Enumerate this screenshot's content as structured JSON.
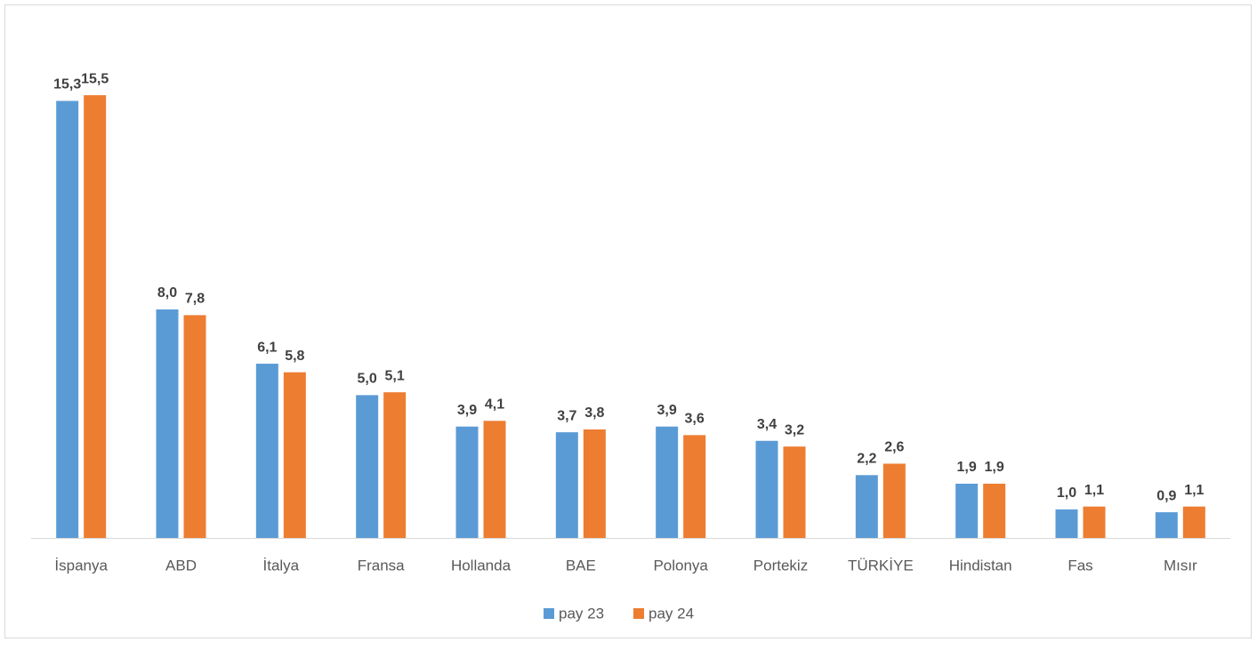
{
  "chart_data": {
    "type": "bar",
    "categories": [
      "İspanya",
      "ABD",
      "İtalya",
      "Fransa",
      "Hollanda",
      "BAE",
      "Polonya",
      "Portekiz",
      "TÜRKİYE",
      "Hindistan",
      "Fas",
      "Mısır"
    ],
    "series": [
      {
        "name": "pay 23",
        "color": "#5b9bd5",
        "values": [
          15.3,
          8.0,
          6.1,
          5.0,
          3.9,
          3.7,
          3.9,
          3.4,
          2.2,
          1.9,
          1.0,
          0.9
        ],
        "value_labels": [
          "15,3",
          "8,0",
          "6,1",
          "5,0",
          "3,9",
          "3,7",
          "3,9",
          "3,4",
          "2,2",
          "1,9",
          "1,0",
          "0,9"
        ]
      },
      {
        "name": "pay 24",
        "color": "#ed7d31",
        "values": [
          15.5,
          7.8,
          5.8,
          5.1,
          4.1,
          3.8,
          3.6,
          3.2,
          2.6,
          1.9,
          1.1,
          1.1
        ],
        "value_labels": [
          "15,5",
          "7,8",
          "5,8",
          "5,1",
          "4,1",
          "3,8",
          "3,6",
          "3,2",
          "2,6",
          "1,9",
          "1,1",
          "1,1"
        ]
      }
    ],
    "ylim": [
      0,
      16
    ]
  }
}
